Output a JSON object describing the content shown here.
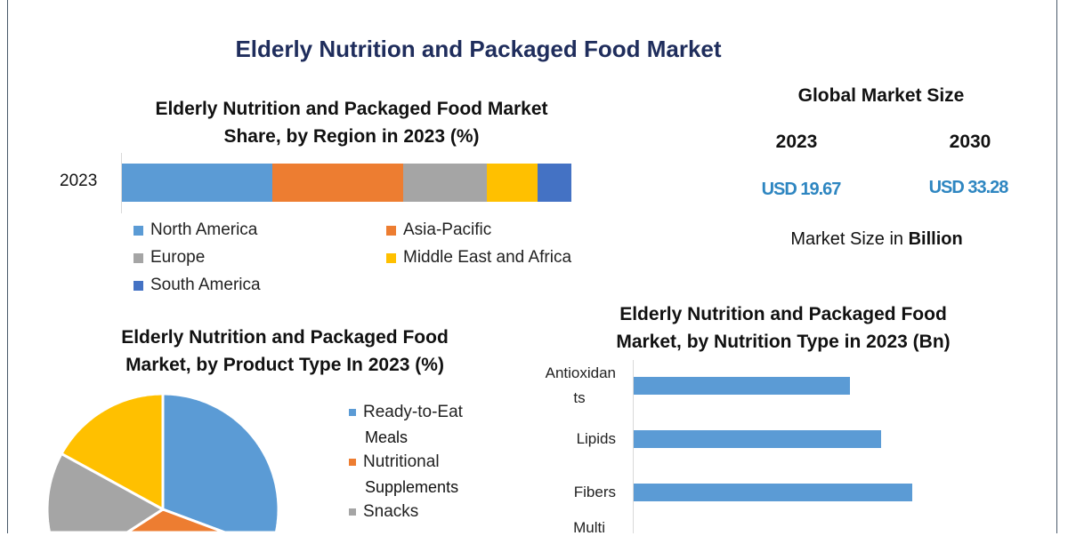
{
  "title": "Elderly Nutrition and Packaged Food Market",
  "global_market": {
    "heading": "Global Market Size",
    "years": [
      "2023",
      "2030"
    ],
    "values": [
      "USD 19.67",
      "USD 33.28"
    ],
    "note_prefix": "Market Size in ",
    "note_unit": "Billion"
  },
  "chart_data": [
    {
      "type": "bar",
      "stacked": true,
      "orientation": "horizontal",
      "title_line1": "Elderly Nutrition and Packaged Food Market",
      "title_line2": "Share, by Region in 2023 (%)",
      "categories": [
        "2023"
      ],
      "series": [
        {
          "name": "North America",
          "values": [
            33.5
          ],
          "color": "#5b9bd5"
        },
        {
          "name": "Asia-Pacific",
          "values": [
            29.1
          ],
          "color": "#ed7d31"
        },
        {
          "name": "Europe",
          "values": [
            18.6
          ],
          "color": "#a5a5a5"
        },
        {
          "name": "Middle East and Africa",
          "values": [
            11.3
          ],
          "color": "#ffc000"
        },
        {
          "name": "South America",
          "values": [
            7.5
          ],
          "color": "#4472c4"
        }
      ],
      "legend": "bottom"
    },
    {
      "type": "pie",
      "title_line1": "Elderly Nutrition and Packaged Food",
      "title_line2": "Market, by Product Type In 2023 (%)",
      "slices": [
        {
          "label": "Ready-to-Eat Meals",
          "label_lines": [
            "Ready-to-Eat",
            "Meals"
          ],
          "value": 41,
          "color": "#5b9bd5"
        },
        {
          "label": "Nutritional Supplements",
          "label_lines": [
            "Nutritional",
            "Supplements"
          ],
          "value": 14,
          "color": "#ed7d31"
        },
        {
          "label": "Snacks",
          "label_lines": [
            "Snacks"
          ],
          "value": 28,
          "color": "#a5a5a5"
        },
        {
          "label": "",
          "label_lines": [],
          "value": 17,
          "color": "#ffc000"
        }
      ],
      "legend": "right"
    },
    {
      "type": "bar",
      "orientation": "horizontal",
      "title_line1": "Elderly Nutrition and Packaged Food",
      "title_line2": "Market, by Nutrition Type in 2023 (Bn)",
      "categories": [
        "Antioxidants",
        "Lipids",
        "Fibers",
        "Multi"
      ],
      "category_lines": [
        [
          "Antioxidan",
          "ts"
        ],
        [
          "Lipids"
        ],
        [
          "Fibers"
        ],
        [
          "Multi"
        ]
      ],
      "values": [
        4.2,
        4.8,
        5.4,
        null
      ],
      "xlim": [
        0,
        8
      ],
      "color": "#5b9bd5",
      "grid": false
    }
  ]
}
